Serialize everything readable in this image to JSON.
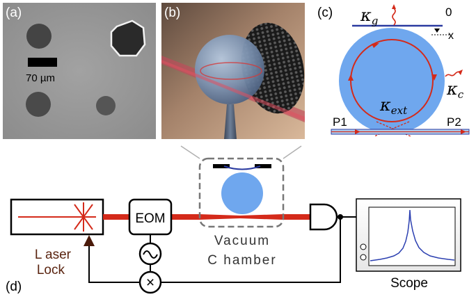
{
  "panels": {
    "a": {
      "label": "(a)",
      "scale_bar": "70 µm"
    },
    "b": {
      "label": "(b)"
    },
    "c": {
      "label": "(c)",
      "kappa_g": "κ",
      "kappa_g_sub": "g",
      "kappa_c": "κ",
      "kappa_c_sub": "c",
      "kappa_ext": "κ",
      "kappa_ext_sub": "ext",
      "zero": "0",
      "x": "x",
      "port1": "P1",
      "port2": "P2"
    },
    "d": {
      "label": "(d)",
      "eom": "EOM",
      "laser_lock_line1": "L aser",
      "laser_lock_line2": "Lock",
      "vacuum_line1": "Vacuum",
      "vacuum_line2": "C hamber",
      "scope": "Scope",
      "oscillator_symbol": "~",
      "mixer_symbol": "×"
    }
  },
  "colors": {
    "laser_red": "#d42a1a",
    "sphere_blue": "#6fa7ee",
    "membrane_blue": "#2a3aa0",
    "trace_blue": "#2b3fb0",
    "laser_lock_text": "#5a2410"
  }
}
